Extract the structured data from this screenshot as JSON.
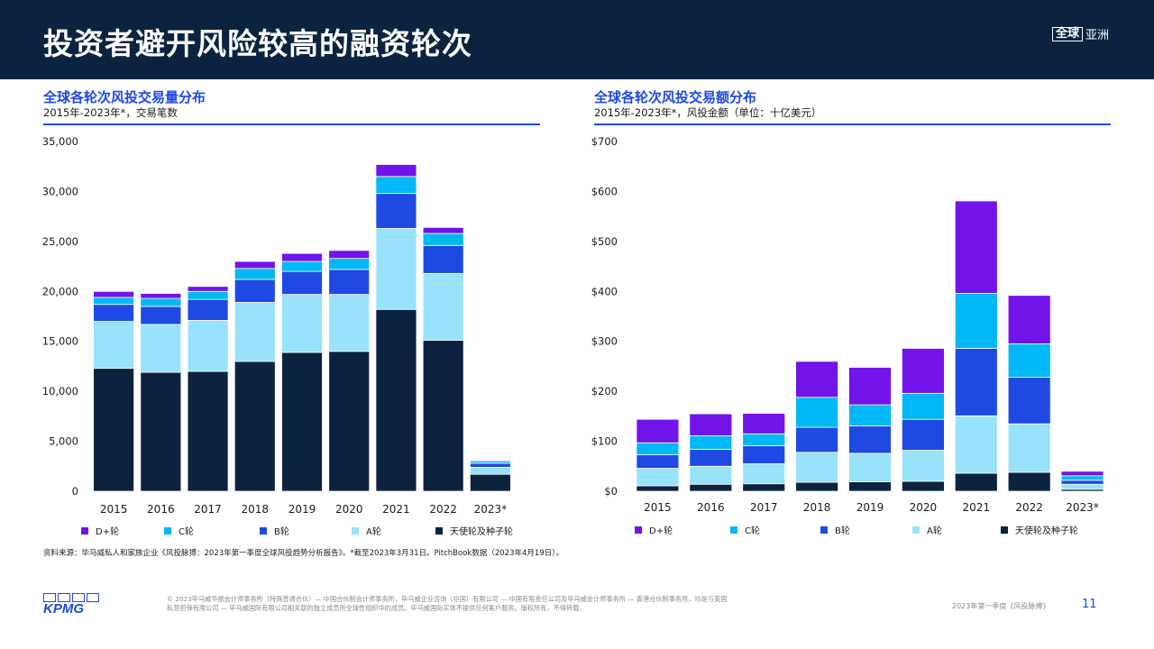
{
  "header": {
    "title": "投资者避开风险较高的融资轮次",
    "region_boxed": "全球",
    "region_rest": "亚洲"
  },
  "chart_data": [
    {
      "type": "bar",
      "stacked": true,
      "title": "全球各轮次风投交易量分布",
      "subtitle": "2015年-2023年*，交易笔数",
      "categories": [
        "2015",
        "2016",
        "2017",
        "2018",
        "2019",
        "2020",
        "2021",
        "2022",
        "2023*"
      ],
      "ylim": [
        0,
        35000
      ],
      "yticks": [
        0,
        5000,
        10000,
        15000,
        20000,
        25000,
        30000,
        35000
      ],
      "ytick_labels": [
        "0",
        "5,000",
        "10,000",
        "15,000",
        "20,000",
        "25,000",
        "30,000",
        "35,000"
      ],
      "series": [
        {
          "name": "天使轮及种子轮",
          "color": "#0c233f",
          "values": [
            12300,
            11900,
            12000,
            13000,
            13900,
            14000,
            18200,
            15100,
            1700
          ]
        },
        {
          "name": "A轮",
          "color": "#98e2fb",
          "values": [
            4700,
            4800,
            5100,
            5900,
            5800,
            5700,
            8100,
            6700,
            700
          ]
        },
        {
          "name": "B轮",
          "color": "#1e49e2",
          "values": [
            1700,
            1800,
            2100,
            2300,
            2300,
            2500,
            3500,
            2800,
            400
          ]
        },
        {
          "name": "C轮",
          "color": "#00b8f5",
          "values": [
            700,
            800,
            800,
            1100,
            1000,
            1100,
            1700,
            1200,
            200
          ]
        },
        {
          "name": "D+轮",
          "color": "#7213ea",
          "values": [
            600,
            500,
            500,
            700,
            800,
            800,
            1200,
            600,
            100
          ]
        }
      ],
      "grid": false,
      "legend": "bottom"
    },
    {
      "type": "bar",
      "stacked": true,
      "title": "全球各轮次风投交易额分布",
      "subtitle": "2015年-2023年*，风投金额（单位：十亿美元）",
      "categories": [
        "2015",
        "2016",
        "2017",
        "2018",
        "2019",
        "2020",
        "2021",
        "2022",
        "2023*"
      ],
      "ylim": [
        0,
        700
      ],
      "yticks": [
        0,
        100,
        200,
        300,
        400,
        500,
        600,
        700
      ],
      "ytick_labels": [
        "$0",
        "$100",
        "$200",
        "$300",
        "$400",
        "$500",
        "$600",
        "$700"
      ],
      "series": [
        {
          "name": "天使轮及种子轮",
          "color": "#0c233f",
          "values": [
            11,
            14,
            15,
            18,
            19,
            20,
            36,
            38,
            4
          ]
        },
        {
          "name": "A轮",
          "color": "#98e2fb",
          "values": [
            35,
            36,
            40,
            60,
            57,
            62,
            115,
            97,
            10
          ]
        },
        {
          "name": "B轮",
          "color": "#1e49e2",
          "values": [
            27,
            34,
            36,
            50,
            55,
            62,
            135,
            93,
            8
          ]
        },
        {
          "name": "C轮",
          "color": "#00b8f5",
          "values": [
            24,
            27,
            24,
            60,
            42,
            52,
            110,
            67,
            9
          ]
        },
        {
          "name": "D+轮",
          "color": "#7213ea",
          "values": [
            47,
            44,
            41,
            72,
            75,
            90,
            185,
            97,
            9
          ]
        }
      ],
      "grid": false,
      "legend": "bottom"
    }
  ],
  "legend_labels": [
    "D+轮",
    "C轮",
    "B轮",
    "A轮",
    "天使轮及种子轮"
  ],
  "legend_colors": [
    "#7213ea",
    "#00b8f5",
    "#1e49e2",
    "#98e2fb",
    "#0c233f"
  ],
  "source": "资料来源：毕马威私人和家族企业《风投脉搏：2023年第一季度全球风投趋势分析报告》。*截至2023年3月31日。PitchBook数据（2023年4月19日）。",
  "footer": {
    "logo": "KPMG",
    "copyright_line1": "© 2023毕马威华振会计师事务所（特殊普通合伙）— 中国合伙制会计师事务所，毕马威企业咨询（中国）有限公司 — 中国有限责任公司及毕马威会计师事务所 — 香港合伙制事务所，均是与英国",
    "copyright_line2": "私营担保有限公司 — 毕马威国际有限公司相关联的独立成员所全球性组织中的成员。毕马威国际实体不提供任何客户服务。版权所有，不得转载。",
    "report_name": "2023年第一季度《风投脉搏》",
    "page_number": "11"
  }
}
